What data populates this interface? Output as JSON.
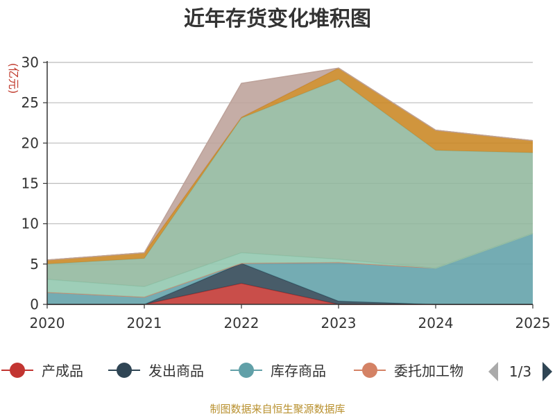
{
  "chart_data": {
    "type": "area",
    "stacked": true,
    "title": "近年存货变化堆积图",
    "unit_label": "(亿元)",
    "categories": [
      "2020",
      "2021",
      "2022",
      "2023",
      "2024",
      "2025"
    ],
    "ylim": [
      0,
      30
    ],
    "yticks": [
      0,
      5,
      10,
      15,
      20,
      25,
      30
    ],
    "grid": true,
    "series": [
      {
        "name": "产成品",
        "color": "#c23531",
        "values": [
          0,
          0,
          2.6,
          0,
          0,
          0
        ]
      },
      {
        "name": "发出商品",
        "color": "#2f4554",
        "values": [
          0,
          0,
          2.5,
          0.4,
          0,
          0
        ]
      },
      {
        "name": "库存商品",
        "color": "#61a0a8",
        "values": [
          1.5,
          0.9,
          0,
          4.8,
          4.5,
          8.8
        ]
      },
      {
        "name": "委托加工物资",
        "color": "#d48265",
        "values": [
          0,
          0,
          0,
          0,
          0,
          0
        ]
      },
      {
        "name": "",
        "color": "#91c7ae",
        "values": [
          1.6,
          1.3,
          1.3,
          0.4,
          0,
          0
        ]
      },
      {
        "name": "",
        "color": "#91b79d",
        "values": [
          1.9,
          3.5,
          16.7,
          22.3,
          14.6,
          10.0
        ]
      },
      {
        "name": "",
        "color": "#ca8622",
        "values": [
          0.5,
          0.7,
          0.1,
          1.4,
          2.5,
          1.5
        ]
      },
      {
        "name": "",
        "color": "#bda29a",
        "values": [
          0,
          0,
          4.2,
          0,
          0,
          0
        ]
      }
    ],
    "legend": {
      "position": "bottom",
      "visible_items": [
        "产成品",
        "发出商品",
        "库存商品",
        "委托加工物"
      ],
      "page": "1/3"
    }
  },
  "source": "制图数据来自恒生聚源数据库"
}
